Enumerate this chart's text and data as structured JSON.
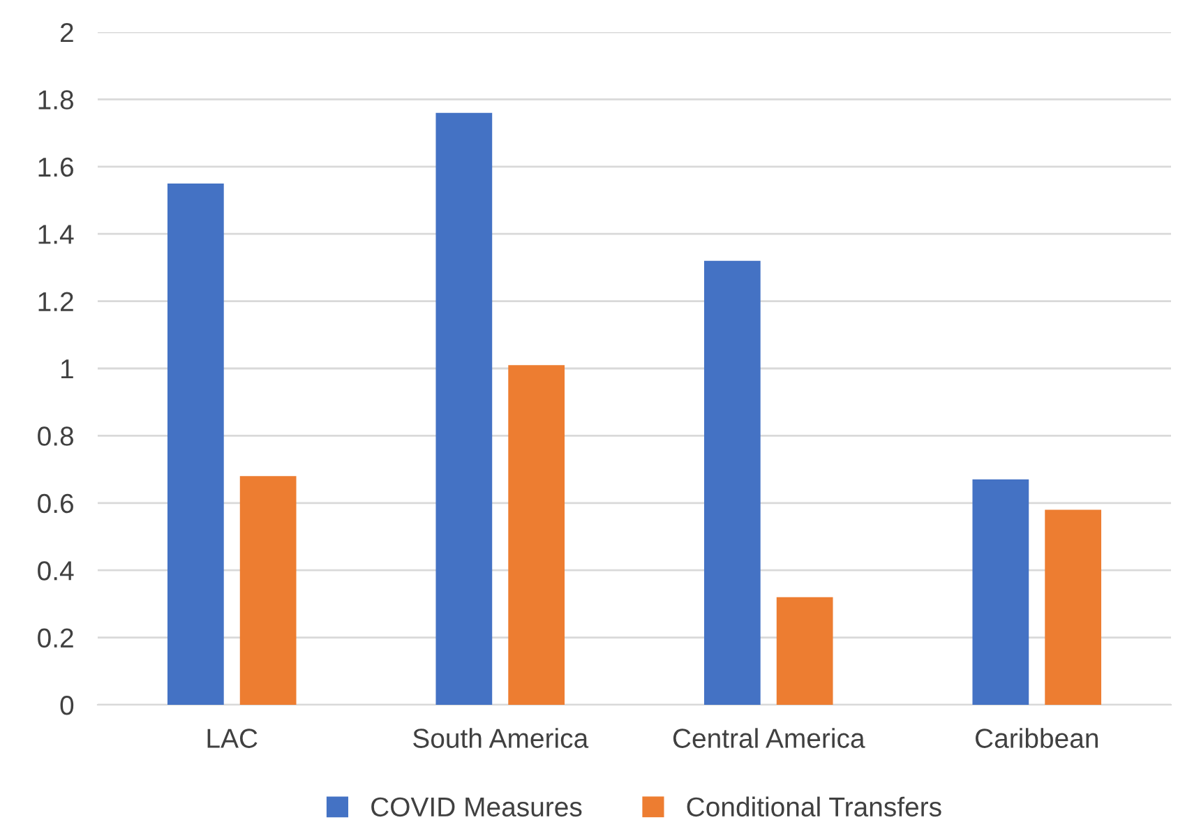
{
  "chart_data": {
    "type": "bar",
    "categories": [
      "LAC",
      "South America",
      "Central America",
      "Caribbean"
    ],
    "series": [
      {
        "name": "COVID Measures",
        "color": "#4472c4",
        "values": [
          1.55,
          1.76,
          1.32,
          0.67
        ]
      },
      {
        "name": "Conditional Transfers",
        "color": "#ed7d31",
        "values": [
          0.68,
          1.01,
          0.32,
          0.58
        ]
      }
    ],
    "ylim": [
      0,
      2
    ],
    "yticks": [
      0,
      {
        "value": 0.2,
        "label": "0.2"
      },
      {
        "value": 0.4,
        "label": "0.4"
      },
      {
        "value": 0.6,
        "label": "0.6"
      },
      {
        "value": 0.8,
        "label": "0.8"
      },
      1,
      {
        "value": 1.2,
        "label": "1.2"
      },
      {
        "value": 1.4,
        "label": "1.4"
      },
      {
        "value": 1.6,
        "label": "1.6"
      },
      {
        "value": 1.8,
        "label": "1.8"
      },
      2
    ],
    "grid": "y",
    "legend": "bottom"
  }
}
